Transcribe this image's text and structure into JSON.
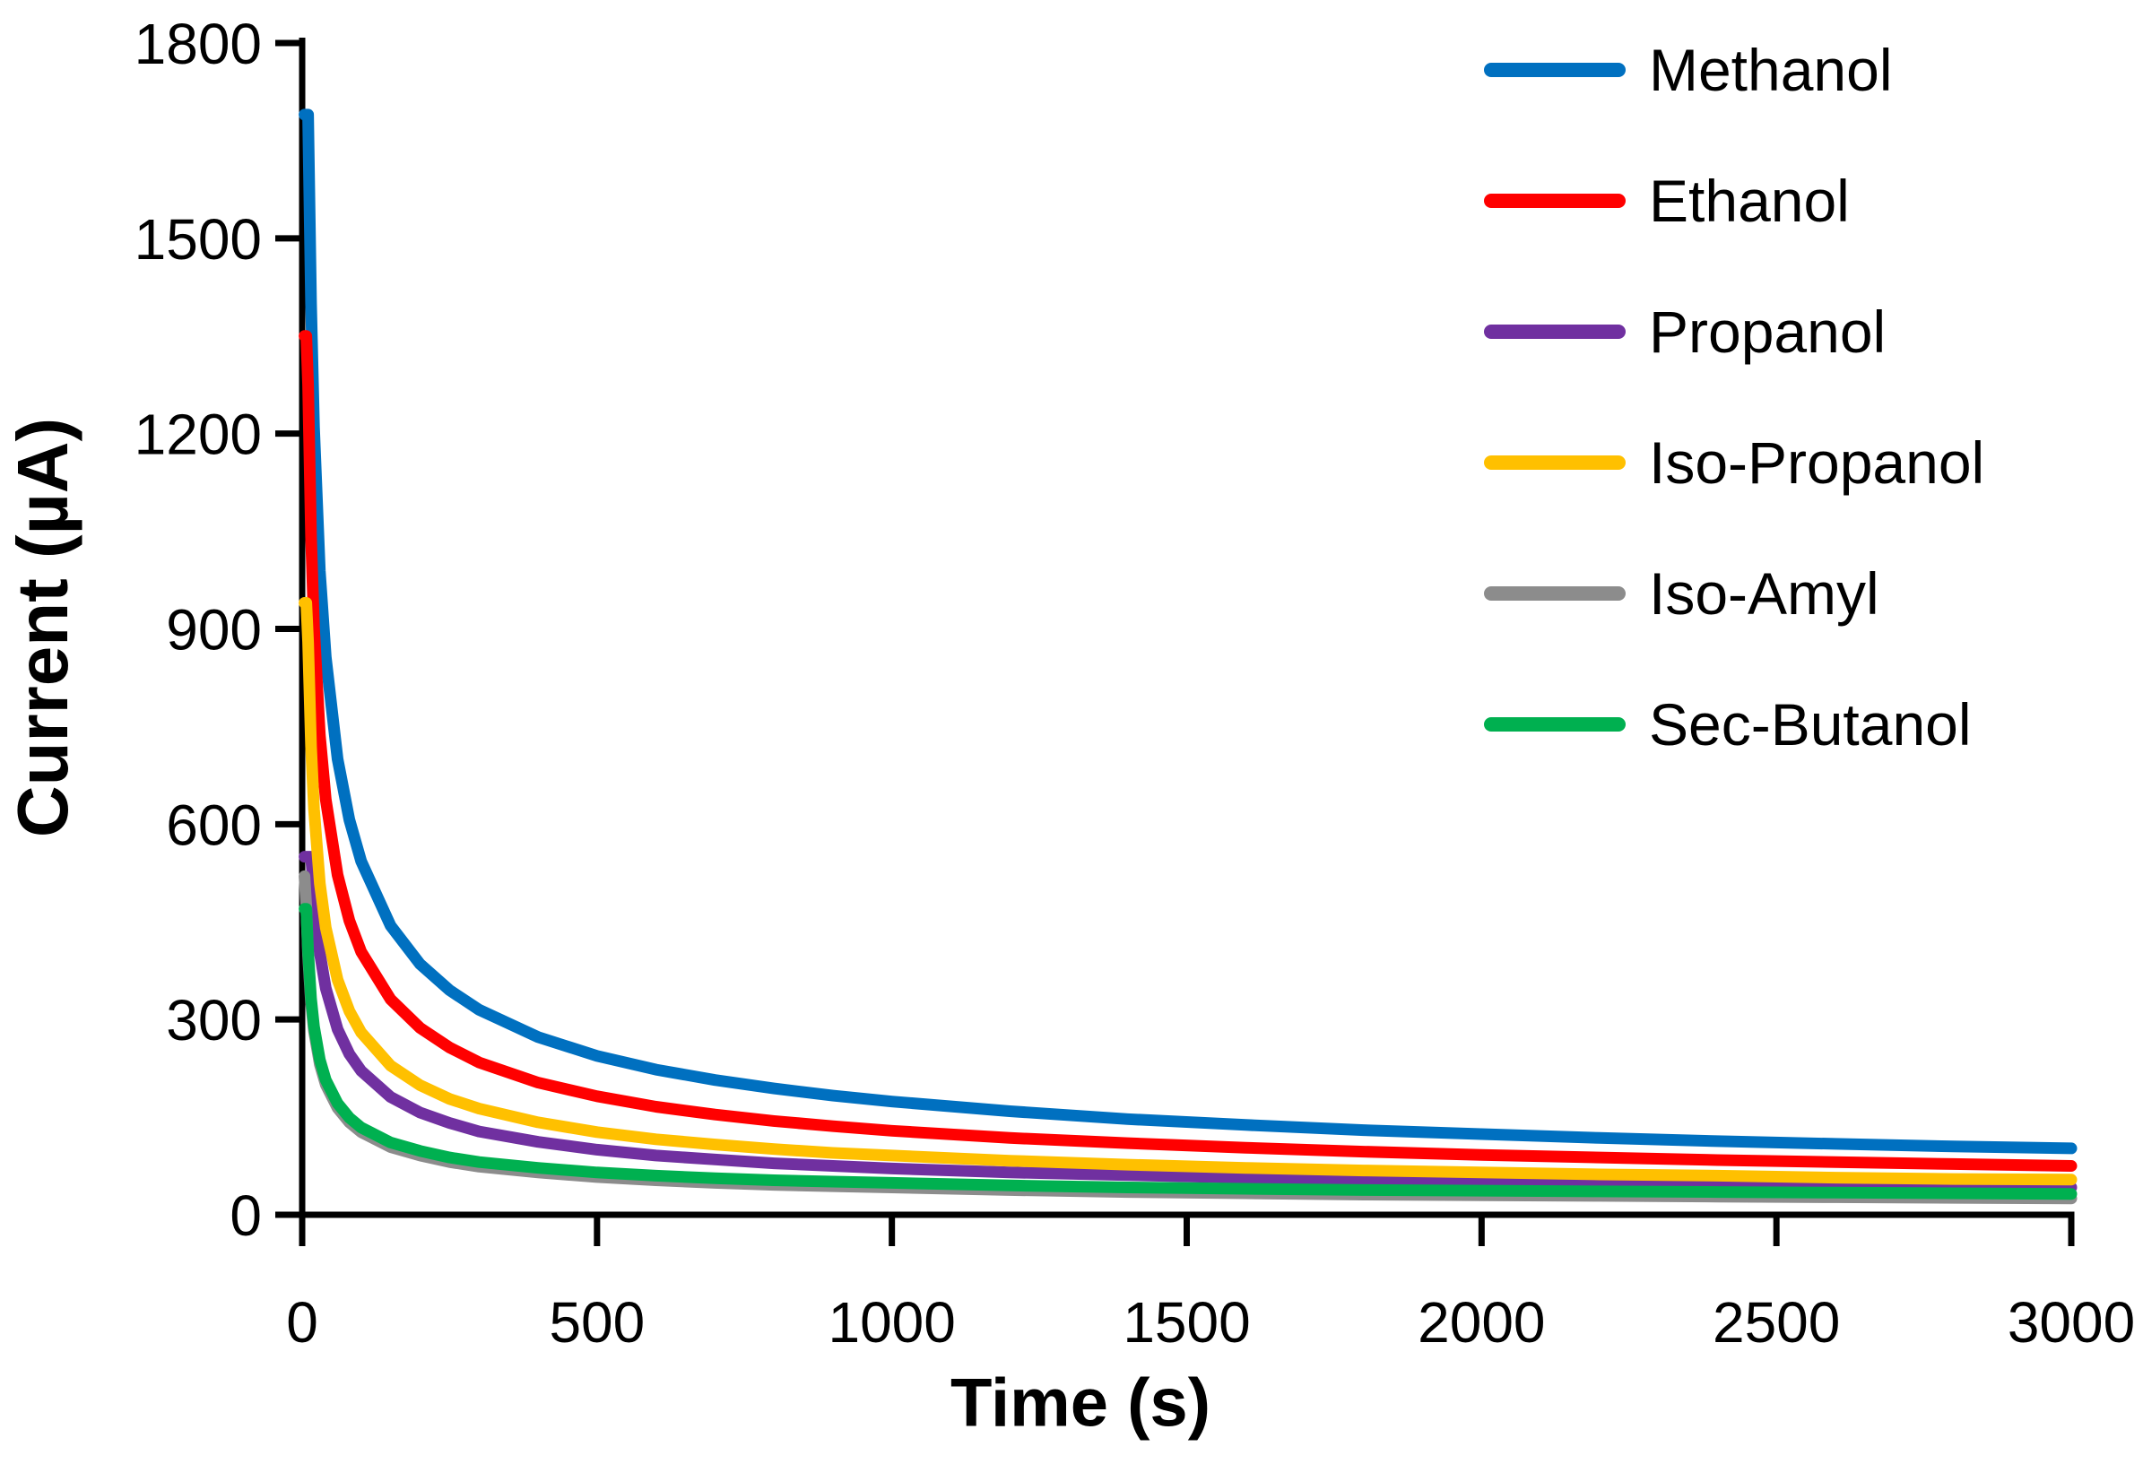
{
  "figure": {
    "background": "#ffffff",
    "axis_color": "#000000"
  },
  "chart_data": {
    "type": "line",
    "title": "",
    "xlabel": "Time (s)",
    "ylabel": "Current (µA)",
    "xlim": [
      0,
      3000
    ],
    "ylim": [
      0,
      1800
    ],
    "grid": false,
    "legend_position": "right-top",
    "x_ticks": [
      0,
      500,
      1000,
      1500,
      2000,
      2500,
      3000
    ],
    "y_ticks": [
      0,
      300,
      600,
      900,
      1200,
      1500,
      1800
    ],
    "x": [
      4,
      7,
      10,
      15,
      20,
      30,
      40,
      60,
      80,
      100,
      150,
      200,
      250,
      300,
      400,
      500,
      600,
      700,
      800,
      900,
      1000,
      1200,
      1400,
      1600,
      1800,
      2000,
      2200,
      2400,
      2600,
      2800,
      3000
    ],
    "series": [
      {
        "name": "Methanol",
        "color": "#0070C0",
        "peak_uA": 1690,
        "values": [
          1690,
          1690,
          1690,
          1400,
          1210,
          989,
          857,
          700,
          607,
          543,
          444,
          385,
          345,
          315,
          273,
          244,
          223,
          207,
          194,
          183,
          174,
          159,
          147,
          138,
          130,
          124,
          118,
          113,
          109,
          105,
          102
        ]
      },
      {
        "name": "Ethanol",
        "color": "#FF0000",
        "peak_uA": 1350,
        "values": [
          1350,
          1350,
          1275,
          1041,
          902,
          737,
          638,
          522,
          452,
          404,
          331,
          287,
          257,
          234,
          203,
          182,
          166,
          154,
          144,
          136,
          129,
          118,
          110,
          103,
          97,
          92,
          88,
          84,
          81,
          78,
          75
        ]
      },
      {
        "name": "Propanol",
        "color": "#7030A0",
        "peak_uA": 550,
        "values": [
          550,
          550,
          550,
          550,
          492,
          402,
          348,
          285,
          247,
          221,
          181,
          157,
          141,
          128,
          112,
          100,
          91,
          85,
          79,
          75,
          71,
          65,
          61,
          57,
          54,
          51,
          49,
          47,
          45,
          43,
          42
        ]
      },
      {
        "name": "Iso-Propanol",
        "color": "#FFC000",
        "peak_uA": 940,
        "values": [
          940,
          940,
          880,
          719,
          623,
          509,
          441,
          361,
          313,
          280,
          229,
          199,
          178,
          163,
          142,
          127,
          116,
          108,
          101,
          95,
          91,
          83,
          77,
          72,
          68,
          65,
          62,
          60,
          57,
          55,
          54
        ]
      },
      {
        "name": "Iso-Amyl",
        "color": "#8C8C8C",
        "peak_uA": 520,
        "values": [
          520,
          473,
          398,
          325,
          282,
          231,
          200,
          164,
          142,
          127,
          104,
          91,
          81,
          74,
          65,
          58,
          53,
          49,
          46,
          44,
          42,
          38,
          35,
          33,
          31,
          30,
          29,
          28,
          27,
          26,
          25
        ]
      },
      {
        "name": "Sec-Butanol",
        "color": "#00B050",
        "peak_uA": 470,
        "values": [
          470,
          470,
          405,
          332,
          289,
          238,
          207,
          171,
          149,
          134,
          111,
          98,
          88,
          81,
          72,
          65,
          60,
          56,
          53,
          51,
          49,
          45,
          42,
          40,
          38,
          37,
          36,
          35,
          34,
          33,
          32
        ]
      }
    ]
  }
}
